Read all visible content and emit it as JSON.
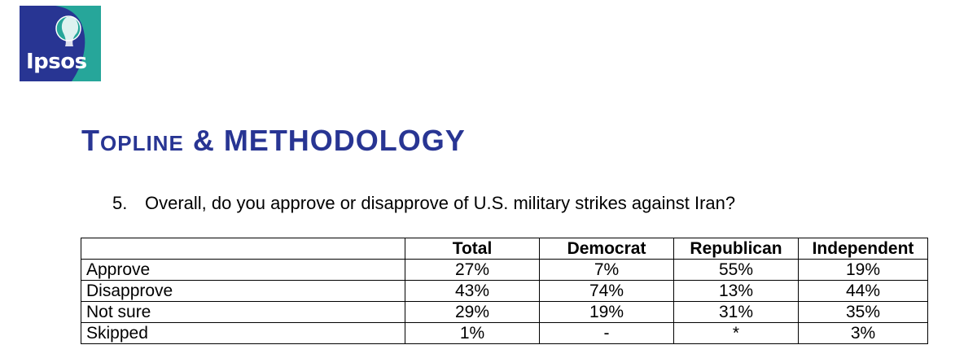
{
  "logo": {
    "text": "Ipsos",
    "colors": {
      "blue": "#283593",
      "teal": "#26a69a"
    }
  },
  "heading": {
    "first_letter": "T",
    "rest_small": "OPLINE",
    "rest": "& METHODOLOGY"
  },
  "question": {
    "number": "5.",
    "text": "Overall, do you approve or disapprove of U.S. military strikes against Iran?"
  },
  "table": {
    "headers": [
      "",
      "Total",
      "Democrat",
      "Republican",
      "Independent"
    ],
    "rows": [
      {
        "label": "Approve",
        "values": [
          "27%",
          "7%",
          "55%",
          "19%"
        ]
      },
      {
        "label": "Disapprove",
        "values": [
          "43%",
          "74%",
          "13%",
          "44%"
        ]
      },
      {
        "label": "Not sure",
        "values": [
          "29%",
          "19%",
          "31%",
          "35%"
        ]
      },
      {
        "label": "Skipped",
        "values": [
          "1%",
          "-",
          "*",
          "3%"
        ]
      }
    ]
  }
}
